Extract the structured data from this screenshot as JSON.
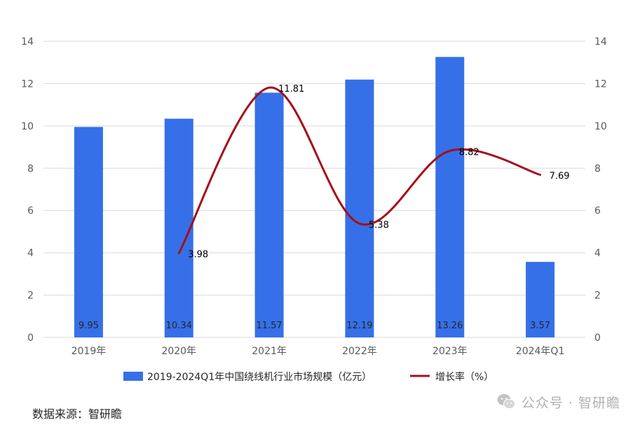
{
  "chart_data": {
    "type": "bar",
    "categories": [
      "2019年",
      "2020年",
      "2021年",
      "2022年",
      "2023年",
      "2024年Q1"
    ],
    "series": [
      {
        "name": "2019-2024Q1年中国绕线机行业市场规模（亿元）",
        "type": "bar",
        "axis": "left",
        "color": "#3670E8",
        "values": [
          9.95,
          10.34,
          11.57,
          12.19,
          13.26,
          3.57
        ],
        "labels": [
          "9.95",
          "10.34",
          "11.57",
          "12.19",
          "13.26",
          "3.57"
        ]
      },
      {
        "name": "增长率（%）",
        "type": "line",
        "axis": "right",
        "color": "#A50F1A",
        "values": [
          null,
          3.98,
          11.81,
          5.38,
          8.82,
          7.69
        ],
        "labels": [
          "",
          "3.98",
          "11.81",
          "5.38",
          "8.82",
          "7.69"
        ]
      }
    ],
    "ylim": [
      0,
      14
    ],
    "y2lim": [
      0,
      14
    ],
    "yticks": [
      "0",
      "2",
      "4",
      "6",
      "8",
      "10",
      "12",
      "14"
    ],
    "y2ticks": [
      "0",
      "2",
      "4",
      "6",
      "8",
      "10",
      "12",
      "14"
    ],
    "grid": true,
    "legend_position": "bottom"
  },
  "source_text": "数据来源：智研瞻",
  "watermark": {
    "icon": "wechat-icon",
    "text": "公众号 · 智研瞻"
  }
}
